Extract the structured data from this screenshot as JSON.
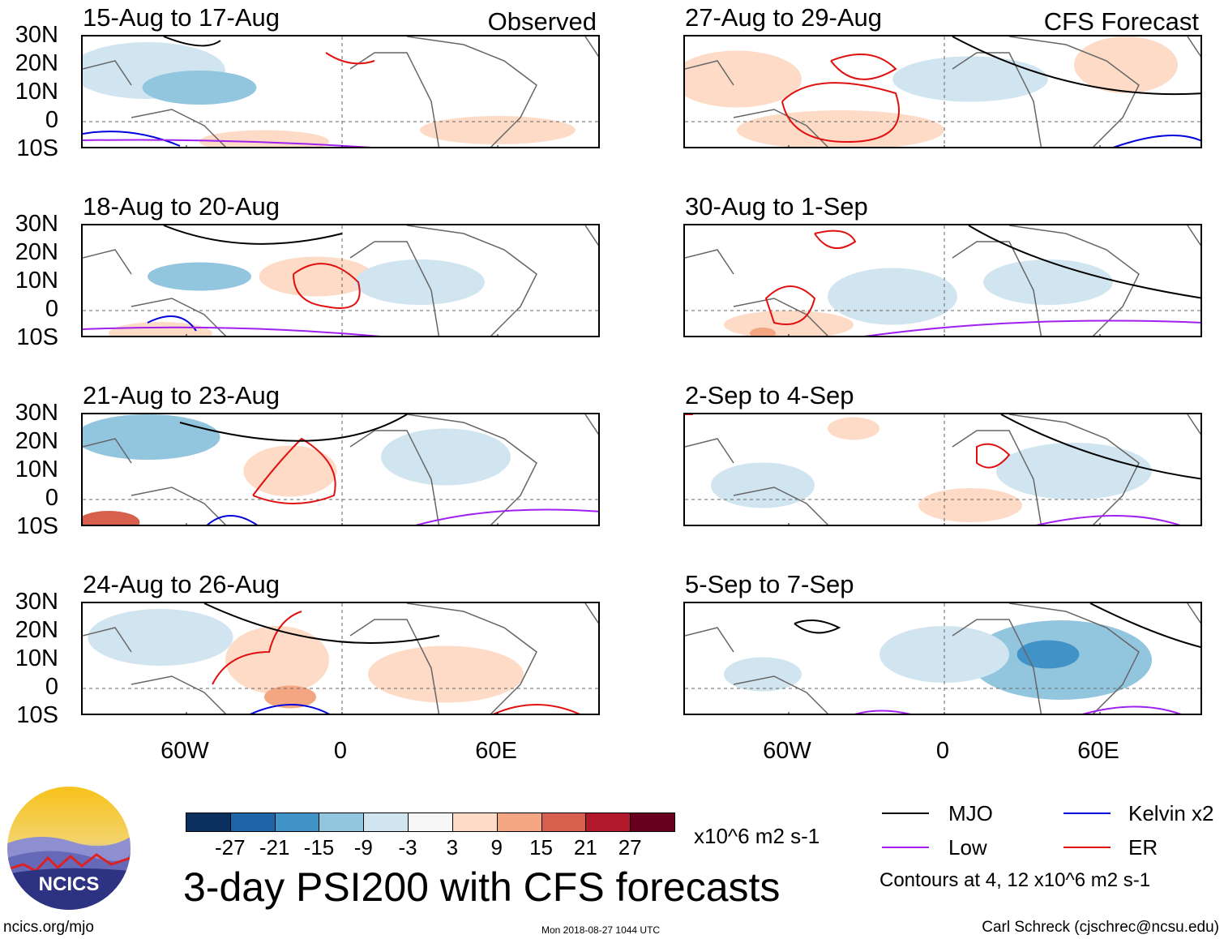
{
  "chart_data": {
    "type": "heatmap",
    "title": "3-day PSI200 with CFS forecasts",
    "variable": "PSI200 anomaly",
    "units": "x10^6 m2 s-1",
    "x_ticks": [
      "60W",
      "0",
      "60E"
    ],
    "y_ticks": [
      "30N",
      "20N",
      "10N",
      "0",
      "10S"
    ],
    "lon_range": [
      -100,
      100
    ],
    "lat_range": [
      -10,
      30
    ],
    "colorbar": {
      "labels": [
        "-27",
        "-21",
        "-15",
        "-9",
        "-3",
        "3",
        "9",
        "15",
        "21",
        "27"
      ],
      "colors": [
        "#0b2f5e",
        "#1f63a8",
        "#4192c6",
        "#92c5de",
        "#d1e5f0",
        "#f7f7f7",
        "#fddbc7",
        "#f4a582",
        "#d6604d",
        "#b2182b",
        "#67001f"
      ]
    },
    "legend": [
      {
        "label": "MJO",
        "color": "#000000"
      },
      {
        "label": "Kelvin x2",
        "color": "#0000dd"
      },
      {
        "label": "Low",
        "color": "#a020f0"
      },
      {
        "label": "ER",
        "color": "#e01010"
      }
    ],
    "contour_note": "Contours at 4, 12 x10^6 m2 s-1",
    "panels": [
      {
        "title": "15-Aug to 17-Aug",
        "tag": "Observed",
        "column": "left",
        "row": 0
      },
      {
        "title": "18-Aug to 20-Aug",
        "tag": "",
        "column": "left",
        "row": 1
      },
      {
        "title": "21-Aug to 23-Aug",
        "tag": "",
        "column": "left",
        "row": 2
      },
      {
        "title": "24-Aug to 26-Aug",
        "tag": "",
        "column": "left",
        "row": 3
      },
      {
        "title": "27-Aug to 29-Aug",
        "tag": "CFS Forecast",
        "column": "right",
        "row": 0
      },
      {
        "title": "30-Aug to 1-Sep",
        "tag": "",
        "column": "right",
        "row": 1
      },
      {
        "title": "2-Sep to 4-Sep",
        "tag": "",
        "column": "right",
        "row": 2
      },
      {
        "title": "5-Sep to 7-Sep",
        "tag": "",
        "column": "right",
        "row": 3
      }
    ]
  },
  "footer": {
    "site": "ncics.org/mjo",
    "timestamp": "Mon 2018-08-27 1044 UTC",
    "author": "Carl Schreck (cjschrec@ncsu.edu)",
    "logo_text": "NCICS"
  }
}
